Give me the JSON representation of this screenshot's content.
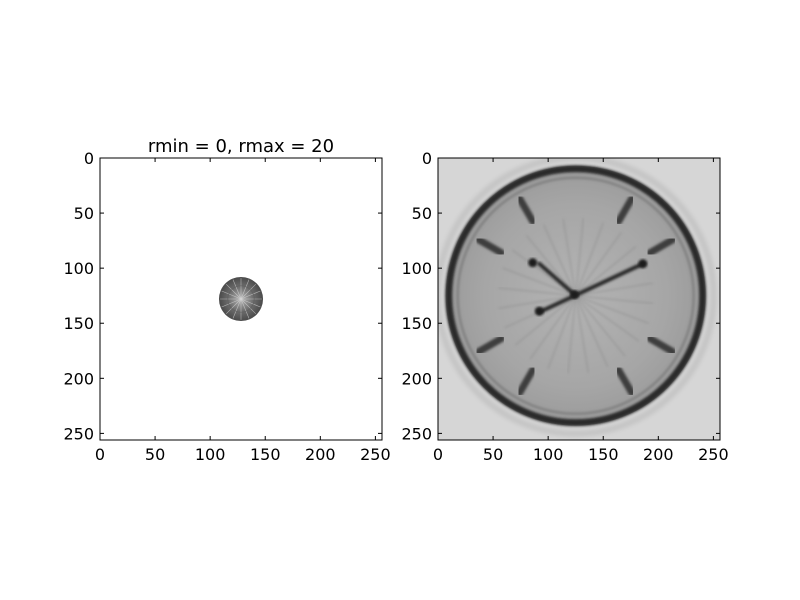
{
  "chart_data": [
    {
      "type": "heatmap",
      "title": "rmin = 0, rmax = 20",
      "description": "Filtered image: only a small disk of radius 20 around the center remains; rest is white.",
      "xlim": [
        0,
        256
      ],
      "ylim": [
        256,
        0
      ],
      "xticks": [
        0,
        50,
        100,
        150,
        200,
        250
      ],
      "yticks": [
        0,
        50,
        100,
        150,
        200,
        250
      ],
      "disk": {
        "cx": 128,
        "cy": 128,
        "r": 20
      },
      "colormap": "gray",
      "grid": false
    },
    {
      "type": "heatmap",
      "title": "",
      "description": "Reconstructed clock-face image: circular face with hour markers and two hands.",
      "xlim": [
        0,
        256
      ],
      "ylim": [
        256,
        0
      ],
      "xticks": [
        0,
        50,
        100,
        150,
        200,
        250
      ],
      "yticks": [
        0,
        50,
        100,
        150,
        200,
        250
      ],
      "clock": {
        "cx": 125,
        "cy": 125,
        "r": 118
      },
      "colormap": "gray",
      "grid": false
    }
  ]
}
